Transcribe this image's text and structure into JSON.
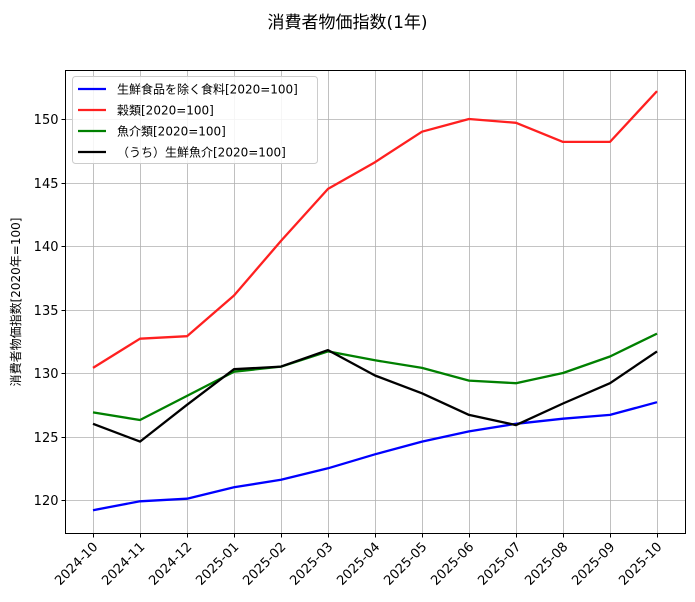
{
  "chart_data": {
    "type": "line",
    "title": "消費者物価指数(1年)",
    "xlabel": "",
    "ylabel": "消費者物価指数[2020年=100]",
    "x": [
      "2024-10",
      "2024-11",
      "2024-12",
      "2025-01",
      "2025-02",
      "2025-03",
      "2025-04",
      "2025-05",
      "2025-06",
      "2025-07",
      "2025-08",
      "2025-09",
      "2025-10"
    ],
    "yticks": [
      120,
      125,
      130,
      135,
      140,
      145,
      150
    ],
    "ylim": [
      117.5,
      153.9
    ],
    "grid": true,
    "legend_position": "upper left",
    "series": [
      {
        "name": "生鮮食品を除く食料[2020=100]",
        "color": "#0000ff",
        "values": [
          119.2,
          119.9,
          120.1,
          121.0,
          121.6,
          122.5,
          123.6,
          124.6,
          125.4,
          126.0,
          126.4,
          126.7,
          127.7
        ]
      },
      {
        "name": "穀類[2020=100]",
        "color": "#ff2020",
        "values": [
          130.4,
          132.7,
          132.9,
          136.1,
          140.4,
          144.5,
          146.6,
          149.0,
          150.0,
          149.7,
          148.2,
          148.2,
          152.2
        ]
      },
      {
        "name": "魚介類[2020=100]",
        "color": "#008000",
        "values": [
          126.9,
          126.3,
          128.2,
          130.1,
          130.5,
          131.7,
          131.0,
          130.4,
          129.4,
          129.2,
          130.0,
          131.3,
          133.1
        ]
      },
      {
        "name": "（うち）生鮮魚介[2020=100]",
        "color": "#000000",
        "values": [
          126.0,
          124.6,
          127.5,
          130.3,
          130.5,
          131.8,
          129.8,
          128.4,
          126.7,
          125.9,
          127.6,
          129.2,
          131.7
        ]
      }
    ]
  }
}
